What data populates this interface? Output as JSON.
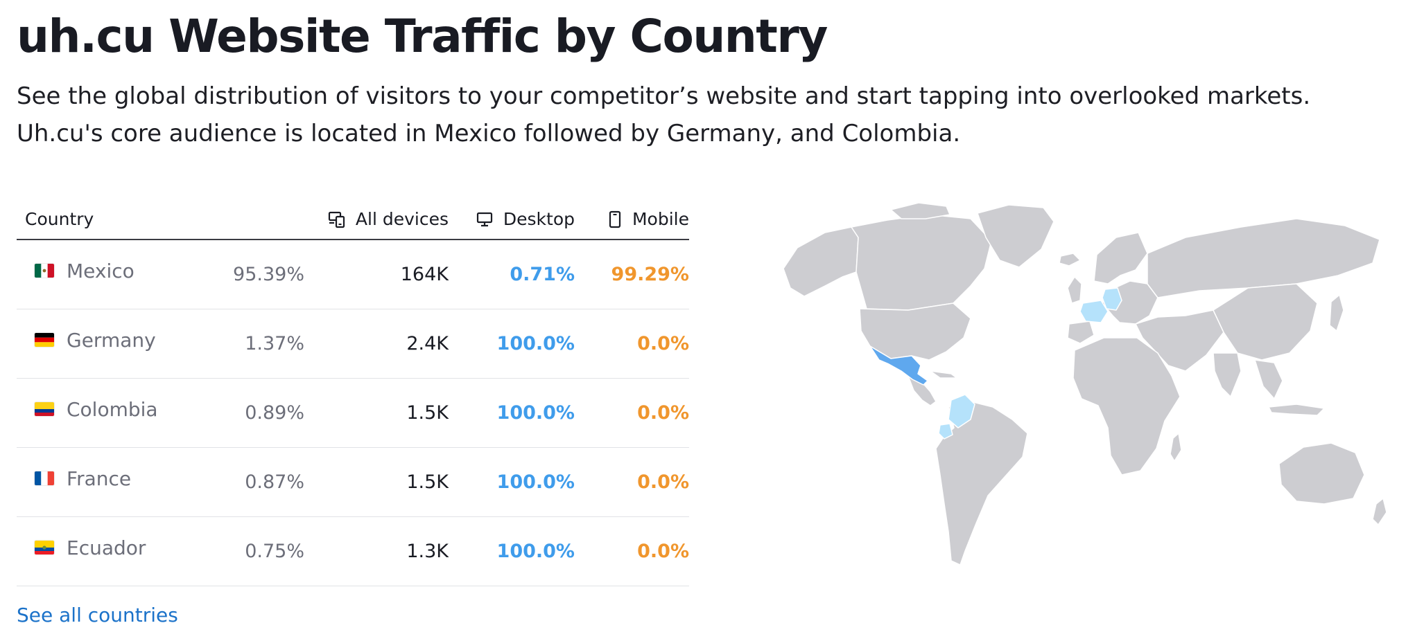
{
  "header": {
    "title": "uh.cu Website Traffic by Country",
    "subtitle_line1": "See the global distribution of visitors to your competitor’s website and start tapping into overlooked markets.",
    "subtitle_line2": "Uh.cu's core audience is located in Mexico followed by Germany, and Colombia."
  },
  "table": {
    "columns": {
      "country": "Country",
      "all_devices": "All devices",
      "desktop": "Desktop",
      "mobile": "Mobile"
    },
    "rows": [
      {
        "country": "Mexico",
        "share": "95.39%",
        "all_devices": "164K",
        "desktop": "0.71%",
        "mobile": "99.29%",
        "flag": "mexico-flag-icon"
      },
      {
        "country": "Germany",
        "share": "1.37%",
        "all_devices": "2.4K",
        "desktop": "100.0%",
        "mobile": "0.0%",
        "flag": "germany-flag-icon"
      },
      {
        "country": "Colombia",
        "share": "0.89%",
        "all_devices": "1.5K",
        "desktop": "100.0%",
        "mobile": "0.0%",
        "flag": "colombia-flag-icon"
      },
      {
        "country": "France",
        "share": "0.87%",
        "all_devices": "1.5K",
        "desktop": "100.0%",
        "mobile": "0.0%",
        "flag": "france-flag-icon"
      },
      {
        "country": "Ecuador",
        "share": "0.75%",
        "all_devices": "1.3K",
        "desktop": "100.0%",
        "mobile": "0.0%",
        "flag": "ecuador-flag-icon"
      }
    ],
    "see_all_link": "See all countries"
  },
  "map": {
    "highlighted_countries": [
      {
        "country": "Mexico",
        "intensity": "high"
      },
      {
        "country": "Germany",
        "intensity": "low"
      },
      {
        "country": "Colombia",
        "intensity": "low"
      },
      {
        "country": "France",
        "intensity": "low"
      },
      {
        "country": "Ecuador",
        "intensity": "low"
      }
    ]
  },
  "colors": {
    "desktop": "#3f9ceb",
    "mobile": "#f0962d",
    "link": "#1b72c9",
    "map_land": "#cdcdd1",
    "map_high": "#5fa8ee",
    "map_low": "#b5e2fb"
  }
}
